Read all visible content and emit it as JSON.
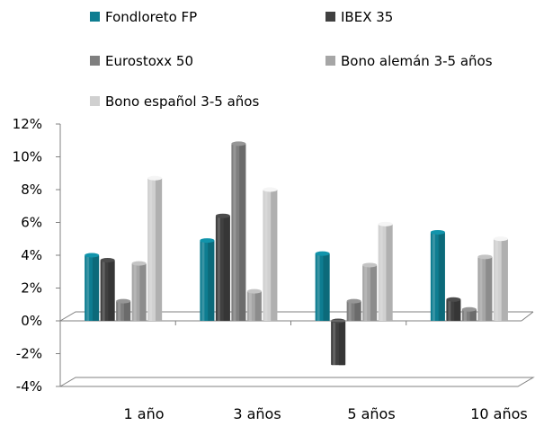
{
  "chart_data": {
    "type": "bar",
    "title": "",
    "xlabel": "",
    "ylabel": "",
    "ylim": [
      -4,
      12
    ],
    "yticks": [
      "12%",
      "10%",
      "8%",
      "6%",
      "4%",
      "2%",
      "0%",
      "-2%",
      "-4%"
    ],
    "ytick_values": [
      12,
      10,
      8,
      6,
      4,
      2,
      0,
      -2,
      -4
    ],
    "categories": [
      "1 año",
      "3 años",
      "5 años",
      "10 años"
    ],
    "legend_position": "top",
    "series": [
      {
        "name": "Fondloreto FP",
        "color": "#0e7d91",
        "values": [
          4.0,
          4.9,
          4.1,
          5.4
        ]
      },
      {
        "name": "IBEX 35",
        "color": "#404040",
        "values": [
          3.7,
          6.4,
          -2.7,
          1.3
        ]
      },
      {
        "name": "Eurostoxx 50",
        "color": "#7f7f7f",
        "values": [
          1.2,
          10.8,
          1.2,
          0.7
        ]
      },
      {
        "name": "Bono alemán 3-5 años",
        "color": "#a6a6a6",
        "values": [
          3.5,
          1.8,
          3.4,
          3.9
        ]
      },
      {
        "name": "Bono español 3-5 años",
        "color": "#d0d0d0",
        "values": [
          8.7,
          8.0,
          5.9,
          5.0
        ]
      }
    ]
  }
}
